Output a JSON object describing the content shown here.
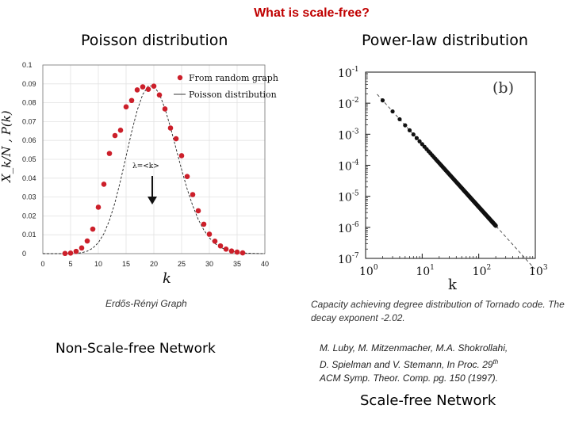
{
  "slide": {
    "title": "What is scale-free?",
    "left_heading": "Poisson distribution",
    "right_heading": "Power-law distribution",
    "left_caption": "Erdős-Rényi Graph",
    "right_caption": "Capacity achieving degree distribution of Tornado code. The decay exponent -2.02.",
    "left_footer": "Non-Scale-free Network",
    "citation_line1": "M. Luby, M. Mitzenmacher, M.A. Shokrollahi,",
    "citation_line2_prefix": "D. Spielman and V. Stemann, In Proc. 29",
    "citation_sup": "th",
    "citation_line3": "ACM Symp. Theor. Comp. pg. 150 (1997).",
    "right_footer": "Scale-free Network"
  },
  "chart_data": [
    {
      "type": "scatter",
      "xlabel": "k",
      "ylabel": "X_k/N , P(k)",
      "xlim": [
        0,
        40
      ],
      "ylim": [
        0,
        0.1
      ],
      "x_ticks": [
        "0",
        "5",
        "10",
        "15",
        "20",
        "25",
        "30",
        "35",
        "40"
      ],
      "y_ticks": [
        "0",
        "0.01",
        "0.02",
        "0.03",
        "0.04",
        "0.05",
        "0.06",
        "0.07",
        "0.08",
        "0.09",
        "0.1"
      ],
      "grid": true,
      "legend_position": "top-right",
      "legend": [
        "From random graph",
        "Poisson distribution"
      ],
      "annotation": "λ=<k>",
      "series": [
        {
          "name": "From random graph",
          "x": [
            4,
            5,
            6,
            7,
            8,
            9,
            10,
            11,
            12,
            13,
            14,
            15,
            16,
            17,
            18,
            19,
            20,
            21,
            22,
            23,
            24,
            25,
            26,
            27,
            28,
            29,
            30,
            31,
            32,
            33,
            34,
            35,
            36
          ],
          "y": [
            0.0001,
            0.0003,
            0.0012,
            0.003,
            0.0067,
            0.013,
            0.0246,
            0.0368,
            0.0531,
            0.0626,
            0.0654,
            0.0778,
            0.0812,
            0.0868,
            0.0884,
            0.0871,
            0.0888,
            0.0841,
            0.0767,
            0.0666,
            0.0609,
            0.0519,
            0.0409,
            0.0313,
            0.0227,
            0.0156,
            0.0103,
            0.0066,
            0.0041,
            0.0024,
            0.0014,
            0.0008,
            0.0004
          ]
        },
        {
          "name": "Poisson distribution",
          "lambda": 20
        }
      ]
    },
    {
      "type": "scatter",
      "xlabel": "k",
      "panel_label": "(b)",
      "xscale": "log",
      "yscale": "log",
      "xlim": [
        1,
        1000
      ],
      "ylim": [
        1e-07,
        0.1
      ],
      "x_ticks": [
        "10^0",
        "10^1",
        "10^2",
        "10^3"
      ],
      "y_ticks": [
        "10^-1",
        "10^-2",
        "10^-3",
        "10^-4",
        "10^-5",
        "10^-6",
        "10^-7"
      ],
      "grid": false,
      "series": [
        {
          "exponent": -2.02,
          "y_at_k1": 0.05,
          "k_range": [
            2,
            200
          ]
        }
      ]
    }
  ]
}
